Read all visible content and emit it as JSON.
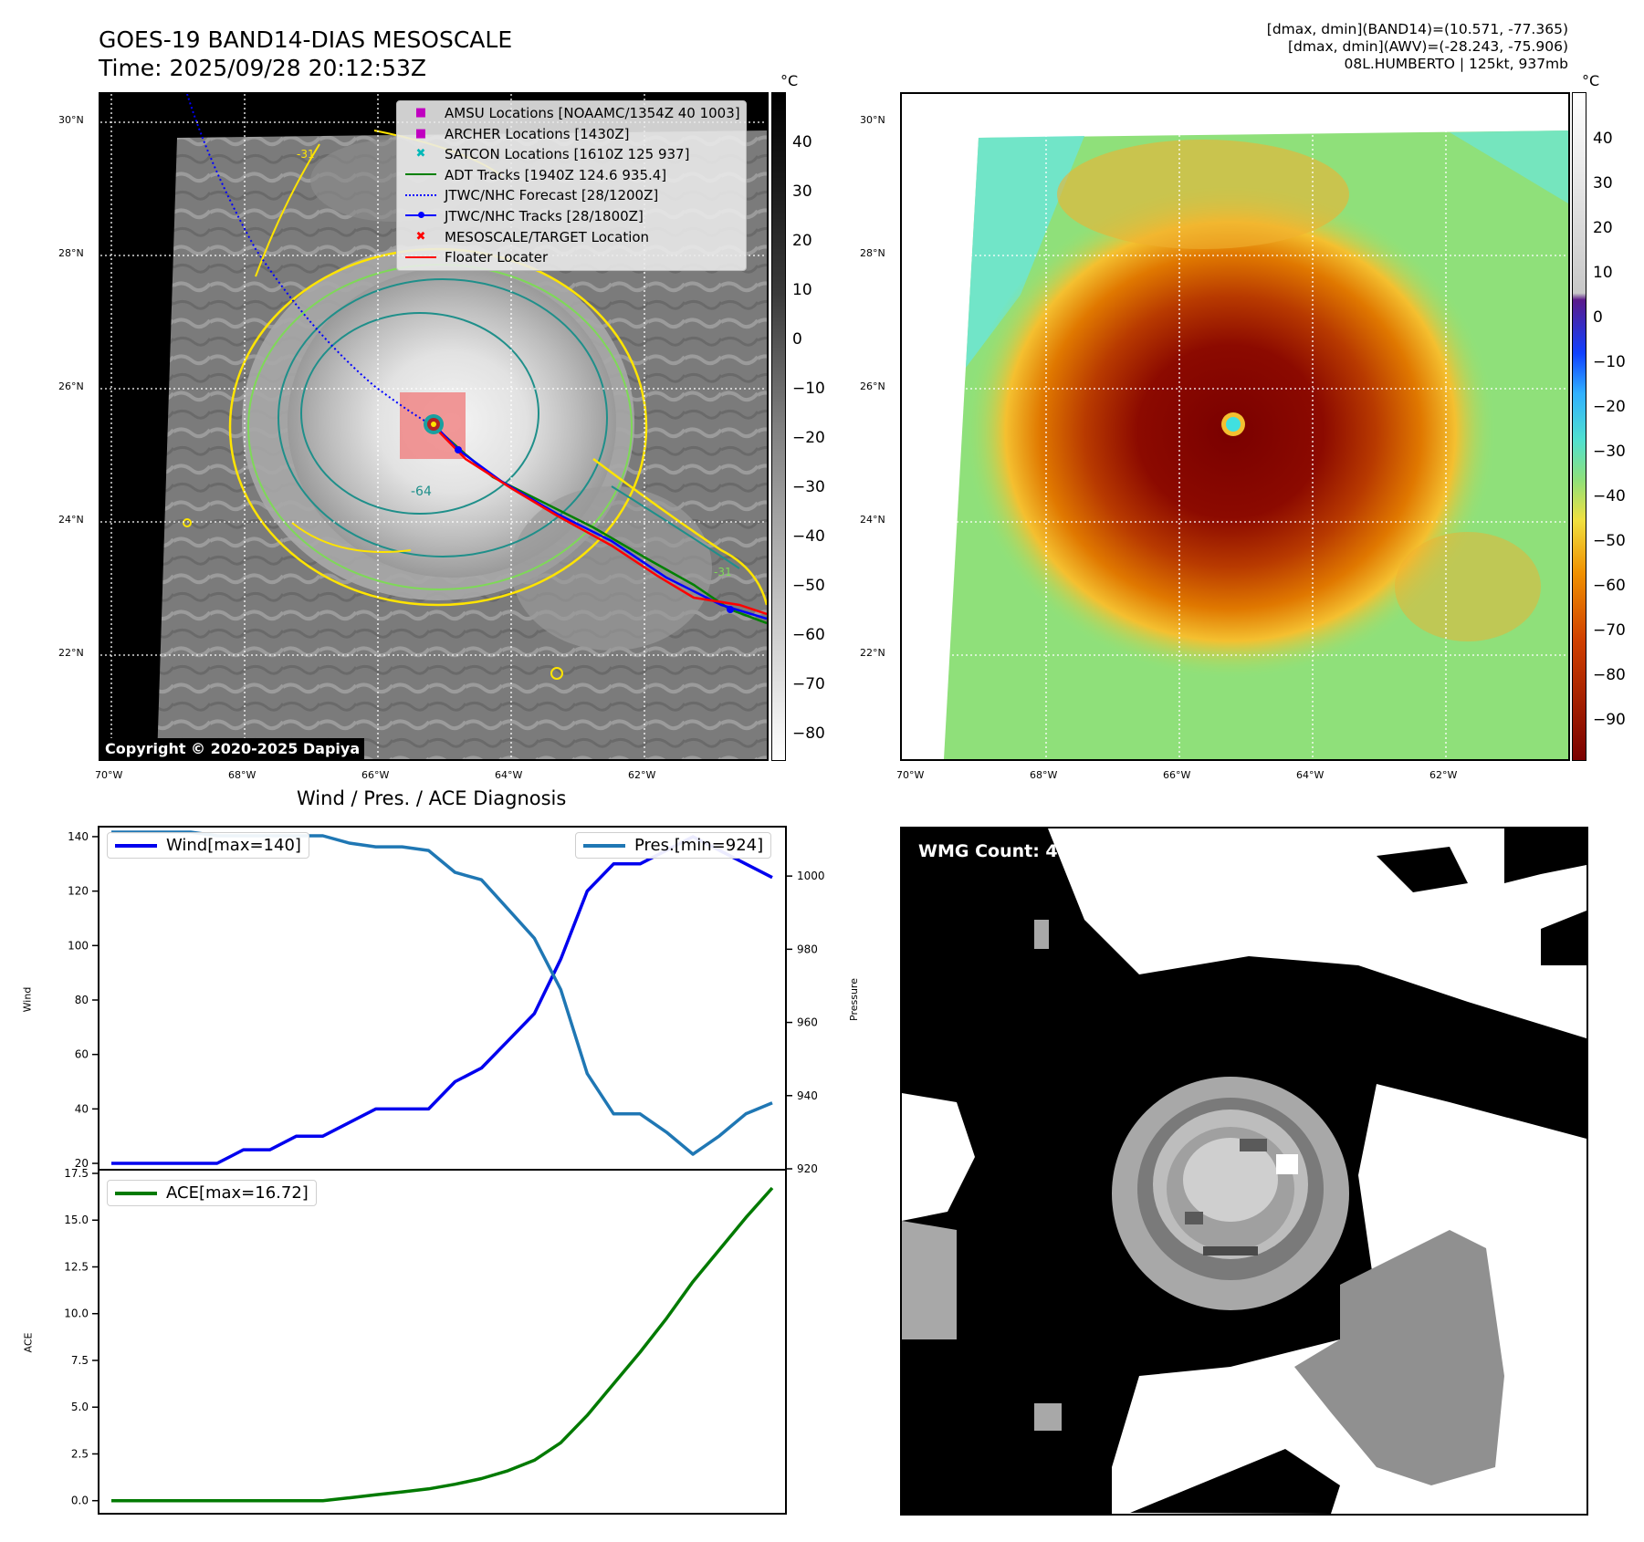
{
  "header": {
    "title_line1": "GOES-19 BAND14-DIAS MESOSCALE",
    "title_line2": "Time: 2025/09/28 20:12:53Z",
    "info_line1": "[dmax, dmin](BAND14)=(10.571, -77.365)",
    "info_line2": "[dmax, dmin](AWV)=(-28.243, -75.906)",
    "info_line3": "08L.HUMBERTO | 125kt, 937mb"
  },
  "map": {
    "lat_labels": [
      "30°N",
      "28°N",
      "26°N",
      "24°N",
      "22°N"
    ],
    "lon_labels": [
      "70°W",
      "68°W",
      "66°W",
      "64°W",
      "62°W"
    ],
    "copyright": "Copyright © 2020-2025 Dapiya",
    "contour_labels": [
      "-64",
      "-31",
      "-31"
    ],
    "legend": [
      {
        "label": "AMSU Locations [NOAAMC/1354Z 40 1003]",
        "symbol": "square",
        "color": "#c000c0"
      },
      {
        "label": "ARCHER Locations [1430Z]",
        "symbol": "square",
        "color": "#c000c0"
      },
      {
        "label": "SATCON Locations [1610Z 125 937]",
        "symbol": "x",
        "color": "#00b8b8"
      },
      {
        "label": "ADT Tracks [1940Z 124.6 935.4]",
        "symbol": "line",
        "color": "#008000"
      },
      {
        "label": "JTWC/NHC Forecast [28/1200Z]",
        "symbol": "dotted",
        "color": "#0000ff"
      },
      {
        "label": "JTWC/NHC Tracks [28/1800Z]",
        "symbol": "line-dot",
        "color": "#0000ff"
      },
      {
        "label": "MESOSCALE/TARGET Location",
        "symbol": "x",
        "color": "#ff0000"
      },
      {
        "label": "Floater Locater",
        "symbol": "line",
        "color": "#ff0000"
      }
    ]
  },
  "colorbar_gray": {
    "unit": "°C",
    "ticks": [
      "40",
      "30",
      "20",
      "10",
      "0",
      "−10",
      "−20",
      "−30",
      "−40",
      "−50",
      "−60",
      "−70",
      "−80"
    ]
  },
  "colorbar_color": {
    "unit": "°C",
    "ticks": [
      "40",
      "30",
      "20",
      "10",
      "0",
      "−10",
      "−20",
      "−30",
      "−40",
      "−50",
      "−60",
      "−70",
      "−80",
      "−90"
    ]
  },
  "wmg": {
    "label": "WMG Count: 4"
  },
  "colors": {
    "wind": "#0000ee",
    "pressure": "#1f77b4",
    "ace": "#007a00",
    "contour_yellow": "#ffe400",
    "contour_lightgreen": "#7ed957",
    "contour_teal": "#1f8f8a",
    "target_box": "#f08080"
  },
  "chart_data": [
    {
      "type": "line",
      "title": "Wind / Pres. / ACE Diagnosis",
      "ylabel": "Wind",
      "ylabel_right": "Pressure",
      "ylim": [
        18,
        143
      ],
      "ylim_right": [
        920,
        1013
      ],
      "yticks": [
        20,
        40,
        60,
        80,
        100,
        120,
        140
      ],
      "yticks_right": [
        920,
        940,
        960,
        980,
        1000
      ],
      "series": [
        {
          "name": "Wind[max=140]",
          "axis": "left",
          "values": [
            20,
            20,
            20,
            20,
            20,
            25,
            25,
            30,
            30,
            35,
            40,
            40,
            40,
            50,
            55,
            65,
            75,
            95,
            120,
            130,
            130,
            135,
            140,
            135,
            130,
            125
          ]
        },
        {
          "name": "Pres.[min=924]",
          "axis": "right",
          "values": [
            1012,
            1012,
            1012,
            1012,
            1011,
            1011,
            1011,
            1011,
            1011,
            1009,
            1008,
            1008,
            1007,
            1001,
            999,
            991,
            983,
            969,
            946,
            935,
            935,
            930,
            924,
            929,
            935,
            938
          ]
        }
      ]
    },
    {
      "type": "line",
      "ylabel": "ACE",
      "ylim": [
        -0.6,
        17.5
      ],
      "yticks": [
        0.0,
        2.5,
        5.0,
        7.5,
        10.0,
        12.5,
        15.0,
        17.5
      ],
      "series": [
        {
          "name": "ACE[max=16.72]",
          "values": [
            0,
            0,
            0,
            0,
            0,
            0,
            0,
            0,
            0,
            0.15,
            0.31,
            0.47,
            0.63,
            0.88,
            1.18,
            1.6,
            2.16,
            3.1,
            4.56,
            6.25,
            7.94,
            9.75,
            11.71,
            13.42,
            15.13,
            16.72
          ]
        }
      ]
    }
  ]
}
